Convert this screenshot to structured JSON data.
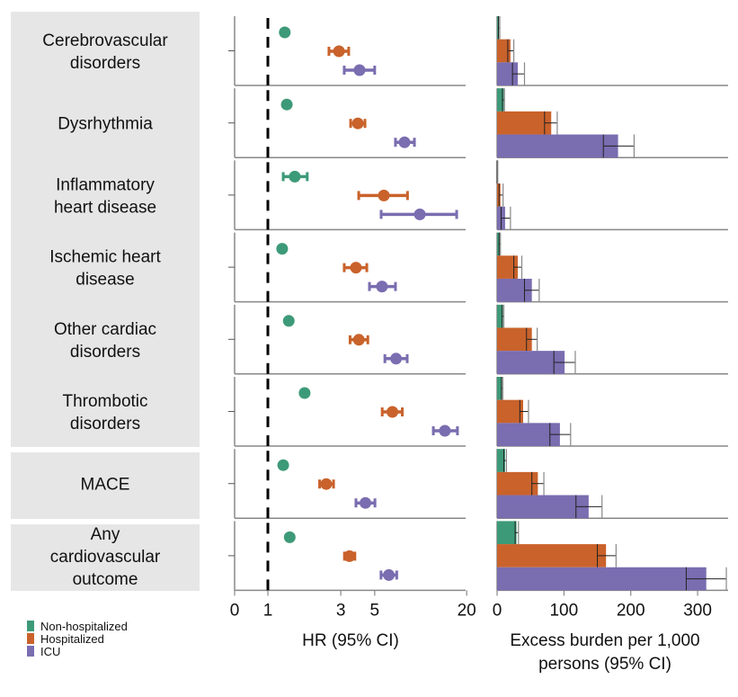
{
  "chart_data": [
    {
      "type": "scatter",
      "subtype": "forest-plot",
      "xlabel": "HR (95% CI)",
      "x_ticks": [
        0,
        1,
        3,
        5,
        20
      ],
      "x_scale": "log (from 1), with 0 segment",
      "xlim": [
        0,
        20
      ],
      "reference_line": 1,
      "categories": [
        "Cerebrovascular disorders",
        "Dysrhythmia",
        "Inflammatory heart disease",
        "Ischemic heart disease",
        "Other cardiac disorders",
        "Thrombotic disorders",
        "MACE",
        "Any cardiovascular outcome"
      ],
      "series": [
        {
          "name": "Non-hospitalized",
          "color": "#3d9a78",
          "values": [
            1.29,
            1.33,
            1.5,
            1.24,
            1.37,
            1.74,
            1.26,
            1.39
          ],
          "lower": [
            1.25,
            1.29,
            1.26,
            1.2,
            1.33,
            1.68,
            1.22,
            1.35
          ],
          "upper": [
            1.33,
            1.37,
            1.81,
            1.28,
            1.41,
            1.8,
            1.3,
            1.43
          ]
        },
        {
          "name": "Hospitalized",
          "color": "#c9622b",
          "values": [
            2.92,
            3.88,
            5.74,
            3.77,
            3.94,
            6.53,
            2.41,
            3.42
          ],
          "lower": [
            2.51,
            3.48,
            3.93,
            3.16,
            3.45,
            5.6,
            2.18,
            3.17
          ],
          "upper": [
            3.38,
            4.32,
            8.2,
            4.44,
            4.51,
            7.58,
            2.69,
            3.71
          ]
        },
        {
          "name": "ICU",
          "color": "#7a6db0",
          "values": [
            3.98,
            7.84,
            9.87,
            5.58,
            6.9,
            14.4,
            4.35,
            6.19
          ],
          "lower": [
            3.16,
            6.84,
            5.51,
            4.62,
            5.83,
            12.1,
            3.77,
            5.5
          ],
          "upper": [
            5.0,
            9.1,
            17.2,
            6.84,
            8.16,
            17.4,
            5.02,
            6.97
          ]
        }
      ]
    },
    {
      "type": "bar",
      "orientation": "horizontal",
      "xlabel": [
        "Excess burden per 1,000",
        "persons (95% CI)"
      ],
      "x_ticks": [
        0,
        100,
        200,
        300
      ],
      "xlim": [
        0,
        345
      ],
      "categories": [
        "Cerebrovascular disorders",
        "Dysrhythmia",
        "Inflammatory heart disease",
        "Ischemic heart disease",
        "Other cardiac disorders",
        "Thrombotic disorders",
        "MACE",
        "Any cardiovascular outcome"
      ],
      "series": [
        {
          "name": "Non-hospitalized",
          "color": "#3d9a78",
          "values": [
            3,
            10,
            0.5,
            4,
            8.8,
            7.4,
            12,
            29
          ],
          "lower": [
            2,
            8,
            0,
            3,
            7.5,
            6.5,
            10,
            27
          ],
          "upper": [
            4,
            11,
            1,
            5,
            10,
            8.5,
            14,
            32
          ]
        },
        {
          "name": "Hospitalized",
          "color": "#c9622b",
          "values": [
            20,
            81,
            5,
            31,
            52,
            39,
            61,
            163
          ],
          "lower": [
            16,
            71,
            3,
            25,
            44,
            34,
            52,
            150
          ],
          "upper": [
            25,
            90,
            9,
            37,
            60,
            47,
            70,
            178
          ]
        },
        {
          "name": "ICU",
          "color": "#7a6db0",
          "values": [
            31,
            181,
            12,
            52,
            101,
            94,
            137,
            313
          ],
          "lower": [
            23,
            159,
            6,
            41,
            85,
            79,
            118,
            283
          ],
          "upper": [
            41,
            205,
            20,
            63,
            117,
            110,
            157,
            343
          ]
        }
      ]
    }
  ],
  "row_labels": [
    [
      "Cerebrovascular",
      "disorders"
    ],
    [
      "Dysrhythmia"
    ],
    [
      "Inflammatory",
      "heart disease"
    ],
    [
      "Ischemic heart",
      "disease"
    ],
    [
      "Other cardiac",
      "disorders"
    ],
    [
      "Thrombotic",
      "disorders"
    ],
    [
      "MACE"
    ],
    [
      "Any",
      "cardiovascular",
      "outcome"
    ]
  ],
  "legend": [
    "Non-hospitalized",
    "Hospitalized",
    "ICU"
  ],
  "legend_position": "bottom-left",
  "label_bg": "#e6e6e6"
}
